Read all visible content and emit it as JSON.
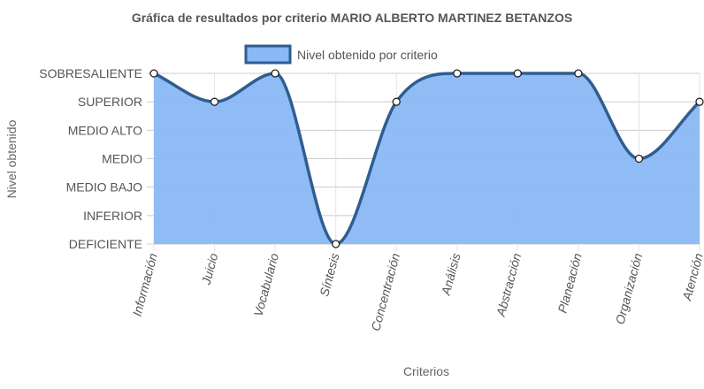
{
  "chart_data": {
    "type": "area",
    "title": "Gráfica de resultados por criterio MARIO ALBERTO MARTINEZ BETANZOS",
    "xlabel": "Criterios",
    "ylabel": "Nivel obtenido",
    "legend_position": "top",
    "grid": true,
    "y_levels": [
      "DEFICIENTE",
      "INFERIOR",
      "MEDIO BAJO",
      "MEDIO",
      "MEDIO ALTO",
      "SUPERIOR",
      "SOBRESALIENTE"
    ],
    "ylim": [
      0,
      6
    ],
    "categories": [
      "Información",
      "Juicio",
      "Vocabulario",
      "Síntesis",
      "Concentración",
      "Análisis",
      "Abstracción",
      "Planeación",
      "Organización",
      "Atención"
    ],
    "series": [
      {
        "name": "Nivel obtenido por criterio",
        "values": [
          6,
          5,
          6,
          0,
          5,
          6,
          6,
          6,
          3,
          5
        ]
      }
    ],
    "colors": {
      "fill": "#8ab8f5",
      "line": "#2f5d91",
      "point_fill": "#ffffff",
      "point_stroke": "#222222",
      "grid": "#cccccc"
    }
  }
}
